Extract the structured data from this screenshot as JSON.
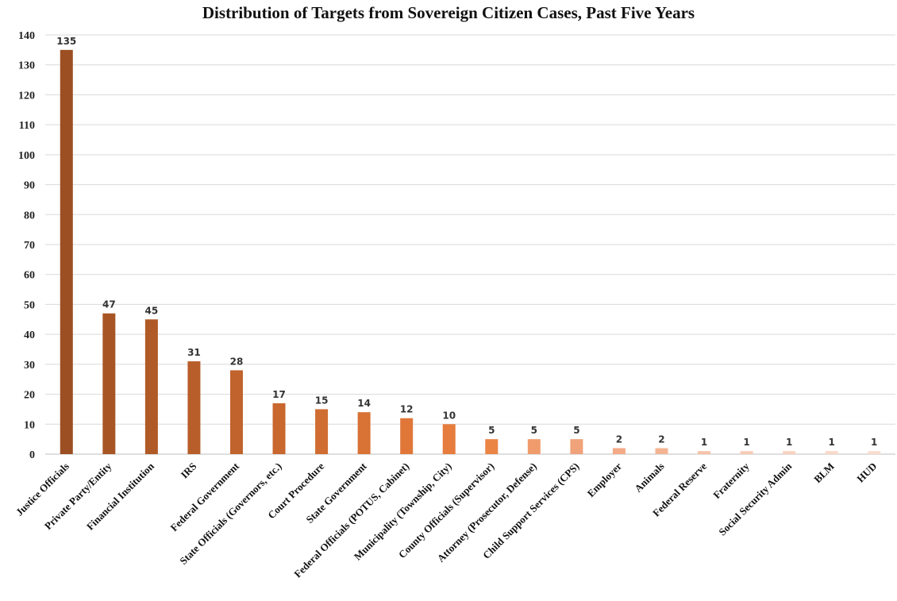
{
  "chart_data": {
    "type": "bar",
    "title": "Distribution of Targets from Sovereign Citizen Cases, Past Five Years",
    "xlabel": "",
    "ylabel": "",
    "ylim": [
      0,
      140
    ],
    "yticks": [
      0,
      10,
      20,
      30,
      40,
      50,
      60,
      70,
      80,
      90,
      100,
      110,
      120,
      130,
      140
    ],
    "grid": true,
    "legend": "none",
    "categories": [
      "Justice Officials",
      "Private Party/Entity",
      "Financial Institution",
      "IRS",
      "Federal Government",
      "State Officials (Governors, etc.)",
      "Court Procedure",
      "State Government",
      "Federal Officials (POTUS, Cabinet)",
      "Municipality (Township, City)",
      "County Officials (Supervisor)",
      "Attorney (Prosecutor, Defense)",
      "Child Support Services (CPS)",
      "Employer",
      "Animals",
      "Federal Reserve",
      "Fraternity",
      "Social Security Admin",
      "BLM",
      "HUD"
    ],
    "values": [
      135,
      47,
      45,
      31,
      28,
      17,
      15,
      14,
      12,
      10,
      5,
      5,
      5,
      2,
      2,
      1,
      1,
      1,
      1,
      1
    ],
    "colors": [
      "#9c4f22",
      "#a85525",
      "#b05a27",
      "#b85e2a",
      "#c0632c",
      "#c8672e",
      "#d06d32",
      "#d87235",
      "#e07739",
      "#e67c3d",
      "#ea8546",
      "#ef9b6c",
      "#f0a27a",
      "#f3aa86",
      "#f4b494",
      "#f6c2a8",
      "#f7cbb5",
      "#f8d2bf",
      "#f9d8c8",
      "#fadccd"
    ]
  }
}
